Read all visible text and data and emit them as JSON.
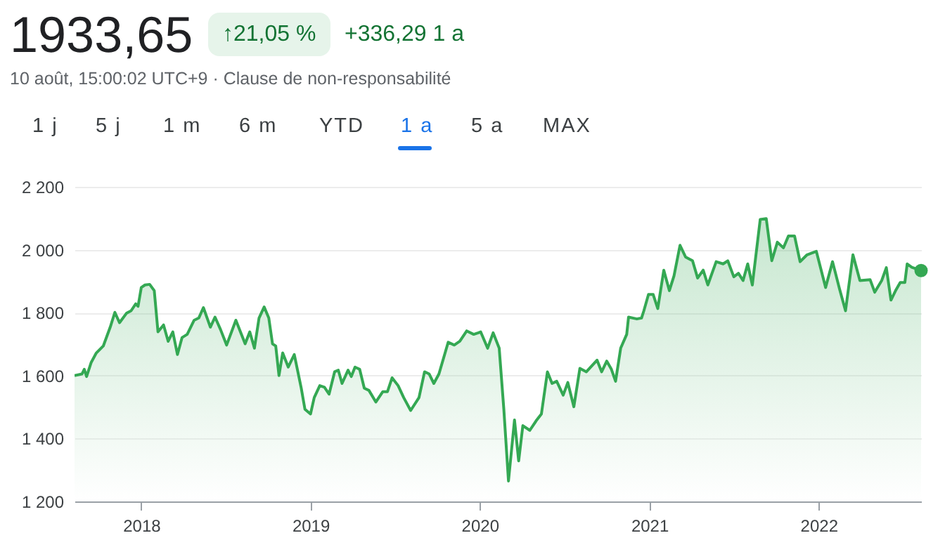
{
  "chart_data": {
    "type": "area",
    "title": "1933,65",
    "subtitle": "10 août, 15:00:02 UTC+9 · Clause de non-responsabilité",
    "annotations": [
      "↑21,05 %",
      "+336,29 1 a",
      "1 j",
      "5 j",
      "1 m",
      "6 m",
      "YTD",
      "1 a",
      "5 a",
      "MAX"
    ],
    "x": [
      "2017-08-10",
      "2017-08-26",
      "2017-08-31",
      "2017-09-05",
      "2017-09-15",
      "2017-09-26",
      "2017-10-11",
      "2017-10-26",
      "2017-11-05",
      "2017-11-15",
      "2017-11-30",
      "2017-12-10",
      "2017-12-20",
      "2017-12-25",
      "2018-01-01",
      "2018-01-09",
      "2018-01-19",
      "2018-01-29",
      "2018-02-06",
      "2018-02-18",
      "2018-02-28",
      "2018-03-10",
      "2018-03-20",
      "2018-03-30",
      "2018-04-10",
      "2018-04-25",
      "2018-05-05",
      "2018-05-15",
      "2018-05-30",
      "2018-06-09",
      "2018-06-21",
      "2018-07-04",
      "2018-07-24",
      "2018-08-13",
      "2018-08-23",
      "2018-09-02",
      "2018-09-12",
      "2018-09-23",
      "2018-10-03",
      "2018-10-11",
      "2018-10-18",
      "2018-10-25",
      "2018-11-02",
      "2018-11-14",
      "2018-11-27",
      "2018-12-12",
      "2018-12-20",
      "2019-01-01",
      "2019-01-09",
      "2019-01-21",
      "2019-01-31",
      "2019-02-10",
      "2019-02-22",
      "2019-03-02",
      "2019-03-10",
      "2019-03-23",
      "2019-03-30",
      "2019-04-07",
      "2019-04-17",
      "2019-04-27",
      "2019-05-07",
      "2019-05-22",
      "2019-06-06",
      "2019-06-16",
      "2019-06-26",
      "2019-07-09",
      "2019-07-21",
      "2019-08-05",
      "2019-08-23",
      "2019-09-04",
      "2019-09-14",
      "2019-09-24",
      "2019-10-05",
      "2019-10-25",
      "2019-11-07",
      "2019-11-19",
      "2019-12-04",
      "2019-12-19",
      "2019-12-29",
      "2020-01-03",
      "2020-01-18",
      "2020-01-30",
      "2020-02-12",
      "2020-02-22",
      "2020-03-03",
      "2020-03-16",
      "2020-03-25",
      "2020-04-03",
      "2020-04-18",
      "2020-05-03",
      "2020-05-13",
      "2020-05-26",
      "2020-06-05",
      "2020-06-15",
      "2020-06-29",
      "2020-07-09",
      "2020-07-22",
      "2020-08-04",
      "2020-08-18",
      "2020-09-10",
      "2020-09-20",
      "2020-10-01",
      "2020-10-11",
      "2020-10-20",
      "2020-10-31",
      "2020-11-13",
      "2020-11-17",
      "2020-12-05",
      "2020-12-15",
      "2020-12-20",
      "2020-12-30",
      "2021-01-09",
      "2021-01-19",
      "2021-02-01",
      "2021-02-13",
      "2021-02-23",
      "2021-03-08",
      "2021-03-20",
      "2021-04-04",
      "2021-04-15",
      "2021-04-27",
      "2021-05-07",
      "2021-05-25",
      "2021-06-09",
      "2021-06-19",
      "2021-07-02",
      "2021-07-12",
      "2021-07-22",
      "2021-08-01",
      "2021-08-11",
      "2021-08-28",
      "2021-09-10",
      "2021-09-22",
      "2021-10-04",
      "2021-10-17",
      "2021-10-28",
      "2021-11-10",
      "2021-11-22",
      "2021-12-07",
      "2021-12-27",
      "2022-01-16",
      "2022-01-31",
      "2022-02-15",
      "2022-02-28",
      "2022-03-16",
      "2022-03-31",
      "2022-04-22",
      "2022-05-02",
      "2022-05-17",
      "2022-05-27",
      "2022-06-06",
      "2022-06-16",
      "2022-06-26",
      "2022-07-06",
      "2022-07-11",
      "2022-07-21",
      "2022-08-10"
    ],
    "series": [
      {
        "color": "#34a853",
        "values": [
          1600,
          1605,
          1620,
          1597,
          1642,
          1672,
          1694,
          1754,
          1801,
          1768,
          1798,
          1806,
          1828,
          1820,
          1880,
          1888,
          1890,
          1870,
          1739,
          1761,
          1709,
          1739,
          1667,
          1721,
          1731,
          1776,
          1783,
          1816,
          1754,
          1786,
          1746,
          1697,
          1776,
          1701,
          1739,
          1687,
          1783,
          1818,
          1783,
          1701,
          1694,
          1600,
          1672,
          1627,
          1667,
          1560,
          1493,
          1478,
          1530,
          1568,
          1563,
          1541,
          1612,
          1617,
          1575,
          1617,
          1597,
          1627,
          1620,
          1560,
          1553,
          1516,
          1549,
          1549,
          1593,
          1568,
          1530,
          1489,
          1530,
          1612,
          1605,
          1575,
          1605,
          1706,
          1697,
          1709,
          1742,
          1731,
          1736,
          1739,
          1687,
          1736,
          1687,
          1493,
          1265,
          1459,
          1329,
          1441,
          1426,
          1459,
          1478,
          1612,
          1575,
          1582,
          1538,
          1578,
          1501,
          1623,
          1612,
          1649,
          1612,
          1646,
          1620,
          1582,
          1687,
          1731,
          1786,
          1780,
          1783,
          1806,
          1858,
          1858,
          1813,
          1935,
          1870,
          1917,
          2014,
          1977,
          1965,
          1910,
          1935,
          1888,
          1962,
          1955,
          1965,
          1914,
          1925,
          1902,
          1955,
          1888,
          2096,
          2099,
          1965,
          2024,
          2006,
          2044,
          2044,
          1962,
          1984,
          1995,
          1880,
          1962,
          1876,
          1806,
          1984,
          1902,
          1905,
          1865,
          1902,
          1943,
          1840,
          1870,
          1896,
          1896,
          1955,
          1944,
          1934
        ]
      }
    ],
    "xlim": [
      "2017-08-10",
      "2022-08-10"
    ],
    "xticks": [
      "2018",
      "2019",
      "2020",
      "2021",
      "2022"
    ],
    "ylim": [
      1200,
      2200
    ],
    "yticks": [
      {
        "value": 1200,
        "label": "1 200"
      },
      {
        "value": 1400,
        "label": "1 400"
      },
      {
        "value": 1600,
        "label": "1 600"
      },
      {
        "value": 1800,
        "label": "1 800"
      },
      {
        "value": 2000,
        "label": "2 000"
      },
      {
        "value": 2200,
        "label": "2 200"
      }
    ],
    "grid": "y"
  }
}
